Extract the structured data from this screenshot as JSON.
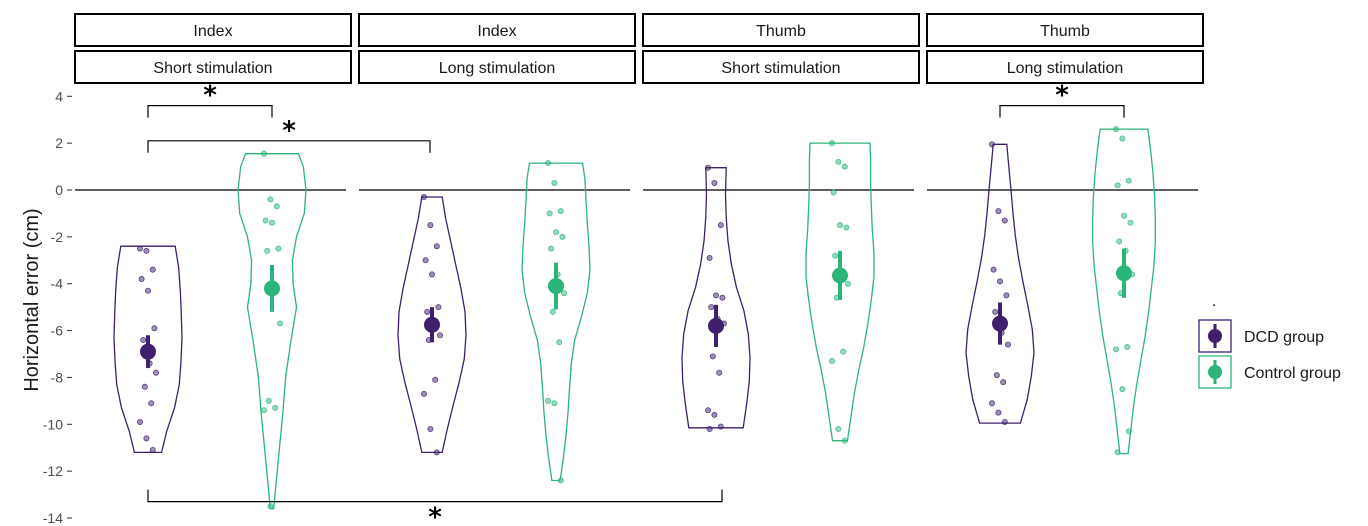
{
  "chart_data": {
    "type": "violin",
    "ylabel": "Horizontal error (cm)",
    "ylim": [
      -14,
      4.3
    ],
    "yticks": [
      4,
      2,
      0,
      -2,
      -4,
      -6,
      -8,
      -10,
      -12,
      -14
    ],
    "ytick_labels": [
      "4",
      "2",
      "0",
      "-2",
      "-4",
      "-6",
      "-8",
      "-10",
      "-12",
      "-14"
    ],
    "reference_line_y": 0,
    "colors": {
      "DCD group": "#3f1f6e",
      "Control group": "#2bb57a"
    },
    "legend": {
      "position": "right",
      "title": ".",
      "entries": [
        "DCD group",
        "Control group"
      ]
    },
    "panels": [
      {
        "finger": "Index",
        "condition": "Short stimulation",
        "groups": [
          {
            "name": "DCD group",
            "mean": -6.9,
            "err_low": -7.6,
            "err_high": -6.2,
            "min": -11.2,
            "max": -2.4,
            "profile": [
              [
                -11.2,
                0.4
              ],
              [
                -10.3,
                0.55
              ],
              [
                -9.3,
                0.78
              ],
              [
                -8.3,
                0.92
              ],
              [
                -7.3,
                0.97
              ],
              [
                -6.3,
                1.0
              ],
              [
                -5.3,
                0.98
              ],
              [
                -4.3,
                0.95
              ],
              [
                -3.3,
                0.9
              ],
              [
                -2.4,
                0.8
              ]
            ],
            "points": [
              -2.5,
              -2.6,
              -3.4,
              -3.8,
              -4.3,
              -5.9,
              -6.4,
              -7.4,
              -7.8,
              -8.4,
              -9.1,
              -9.9,
              -10.6,
              -11.1
            ]
          },
          {
            "name": "Control group",
            "mean": -4.2,
            "err_low": -5.2,
            "err_high": -3.2,
            "min": -13.6,
            "max": 1.55,
            "profile": [
              [
                -13.6,
                0.05
              ],
              [
                -12.5,
                0.12
              ],
              [
                -11.0,
                0.22
              ],
              [
                -9.5,
                0.32
              ],
              [
                -8.0,
                0.4
              ],
              [
                -6.5,
                0.55
              ],
              [
                -5.0,
                0.72
              ],
              [
                -4.0,
                0.62
              ],
              [
                -3.0,
                0.6
              ],
              [
                -2.0,
                0.72
              ],
              [
                -1.0,
                0.95
              ],
              [
                0.0,
                1.0
              ],
              [
                1.0,
                0.92
              ],
              [
                1.55,
                0.78
              ]
            ],
            "points": [
              1.55,
              -0.4,
              -0.7,
              -1.3,
              -1.4,
              -2.5,
              -2.6,
              -4.2,
              -5.7,
              -9.0,
              -9.3,
              -9.4,
              -13.5
            ]
          }
        ]
      },
      {
        "finger": "Index",
        "condition": "Long stimulation",
        "groups": [
          {
            "name": "DCD group",
            "mean": -5.75,
            "err_low": -6.5,
            "err_high": -5.0,
            "min": -11.2,
            "max": -0.3,
            "profile": [
              [
                -11.2,
                0.3
              ],
              [
                -10.2,
                0.45
              ],
              [
                -9.2,
                0.62
              ],
              [
                -8.2,
                0.8
              ],
              [
                -7.2,
                0.95
              ],
              [
                -6.2,
                1.0
              ],
              [
                -5.2,
                0.97
              ],
              [
                -4.2,
                0.85
              ],
              [
                -3.2,
                0.7
              ],
              [
                -2.2,
                0.55
              ],
              [
                -1.2,
                0.4
              ],
              [
                -0.3,
                0.3
              ]
            ],
            "points": [
              -0.3,
              -1.5,
              -2.4,
              -3.0,
              -3.6,
              -5.0,
              -5.2,
              -5.8,
              -6.2,
              -6.4,
              -8.1,
              -8.7,
              -10.2,
              -11.2
            ]
          },
          {
            "name": "Control group",
            "mean": -4.1,
            "err_low": -5.1,
            "err_high": -3.1,
            "min": -12.4,
            "max": 1.15,
            "profile": [
              [
                -12.4,
                0.12
              ],
              [
                -11.4,
                0.22
              ],
              [
                -10.4,
                0.3
              ],
              [
                -9.4,
                0.36
              ],
              [
                -8.4,
                0.4
              ],
              [
                -7.4,
                0.45
              ],
              [
                -6.4,
                0.55
              ],
              [
                -5.4,
                0.75
              ],
              [
                -4.4,
                0.92
              ],
              [
                -3.4,
                1.0
              ],
              [
                -2.4,
                0.97
              ],
              [
                -1.4,
                0.92
              ],
              [
                -0.4,
                0.88
              ],
              [
                0.5,
                0.85
              ],
              [
                1.15,
                0.78
              ]
            ],
            "points": [
              1.15,
              0.3,
              -0.9,
              -1.0,
              -1.8,
              -2.0,
              -2.5,
              -3.6,
              -4.4,
              -5.2,
              -6.5,
              -9.0,
              -9.1,
              -12.4
            ]
          }
        ]
      },
      {
        "finger": "Thumb",
        "condition": "Short stimulation",
        "groups": [
          {
            "name": "DCD group",
            "mean": -5.8,
            "err_low": -6.7,
            "err_high": -4.9,
            "min": -10.15,
            "max": 0.95,
            "profile": [
              [
                -10.15,
                0.8
              ],
              [
                -9.15,
                0.9
              ],
              [
                -8.15,
                0.98
              ],
              [
                -7.15,
                1.0
              ],
              [
                -6.15,
                0.95
              ],
              [
                -5.15,
                0.82
              ],
              [
                -4.15,
                0.6
              ],
              [
                -3.15,
                0.45
              ],
              [
                -2.15,
                0.35
              ],
              [
                -1.15,
                0.3
              ],
              [
                -0.15,
                0.28
              ],
              [
                0.95,
                0.3
              ]
            ],
            "points": [
              0.95,
              0.3,
              -1.5,
              -2.9,
              -4.5,
              -4.6,
              -5.0,
              -5.5,
              -5.7,
              -7.1,
              -7.8,
              -9.4,
              -9.6,
              -10.1,
              -10.2
            ]
          },
          {
            "name": "Control group",
            "mean": -3.65,
            "err_low": -4.7,
            "err_high": -2.6,
            "min": -10.7,
            "max": 2.0,
            "profile": [
              [
                -10.7,
                0.22
              ],
              [
                -9.7,
                0.32
              ],
              [
                -8.7,
                0.42
              ],
              [
                -7.7,
                0.55
              ],
              [
                -6.7,
                0.7
              ],
              [
                -5.7,
                0.82
              ],
              [
                -4.7,
                0.92
              ],
              [
                -3.7,
                1.0
              ],
              [
                -2.7,
                1.0
              ],
              [
                -1.7,
                0.95
              ],
              [
                -0.7,
                0.92
              ],
              [
                0.3,
                0.9
              ],
              [
                1.3,
                0.9
              ],
              [
                2.0,
                0.88
              ]
            ],
            "points": [
              2.0,
              1.2,
              1.0,
              -0.1,
              -1.5,
              -1.6,
              -2.8,
              -3.5,
              -4.0,
              -4.6,
              -6.9,
              -7.3,
              -10.2,
              -10.7
            ]
          }
        ]
      },
      {
        "finger": "Thumb",
        "condition": "Long stimulation",
        "groups": [
          {
            "name": "DCD group",
            "mean": -5.7,
            "err_low": -6.6,
            "err_high": -4.8,
            "min": -9.95,
            "max": 1.95,
            "profile": [
              [
                -9.95,
                0.6
              ],
              [
                -8.95,
                0.8
              ],
              [
                -7.95,
                0.92
              ],
              [
                -6.95,
                1.0
              ],
              [
                -5.95,
                0.95
              ],
              [
                -4.95,
                0.82
              ],
              [
                -3.95,
                0.68
              ],
              [
                -2.95,
                0.55
              ],
              [
                -1.95,
                0.45
              ],
              [
                -0.95,
                0.38
              ],
              [
                0.05,
                0.32
              ],
              [
                1.0,
                0.26
              ],
              [
                1.95,
                0.2
              ]
            ],
            "points": [
              1.95,
              -0.9,
              -1.3,
              -3.4,
              -3.9,
              -4.5,
              -5.2,
              -6.1,
              -6.6,
              -7.9,
              -8.2,
              -9.1,
              -9.5,
              -9.9
            ]
          },
          {
            "name": "Control group",
            "mean": -3.55,
            "err_low": -4.6,
            "err_high": -2.5,
            "min": -11.25,
            "max": 2.6,
            "profile": [
              [
                -11.25,
                0.12
              ],
              [
                -10.25,
                0.2
              ],
              [
                -9.25,
                0.28
              ],
              [
                -8.25,
                0.38
              ],
              [
                -7.25,
                0.5
              ],
              [
                -6.25,
                0.62
              ],
              [
                -5.25,
                0.72
              ],
              [
                -4.25,
                0.8
              ],
              [
                -3.25,
                0.88
              ],
              [
                -2.25,
                0.92
              ],
              [
                -1.25,
                0.92
              ],
              [
                -0.25,
                0.9
              ],
              [
                0.75,
                0.85
              ],
              [
                1.75,
                0.78
              ],
              [
                2.6,
                0.7
              ]
            ],
            "points": [
              2.6,
              2.2,
              0.4,
              0.2,
              -1.1,
              -1.4,
              -2.2,
              -2.6,
              -3.6,
              -4.4,
              -6.7,
              -6.8,
              -8.5,
              -10.3,
              -11.2
            ]
          }
        ]
      }
    ],
    "significance": [
      {
        "label": "*",
        "panel": 0,
        "from_group": 0,
        "to_group": 1,
        "y": 3.6
      },
      {
        "label": "*",
        "from_panel": 0,
        "to_panel": 1,
        "y": 2.1
      },
      {
        "label": "*",
        "panel": 3,
        "from_group": 0,
        "to_group": 1,
        "y": 3.6
      },
      {
        "label": "*",
        "from_panel": 0,
        "to_panel": 2,
        "y": -13.3
      }
    ]
  }
}
